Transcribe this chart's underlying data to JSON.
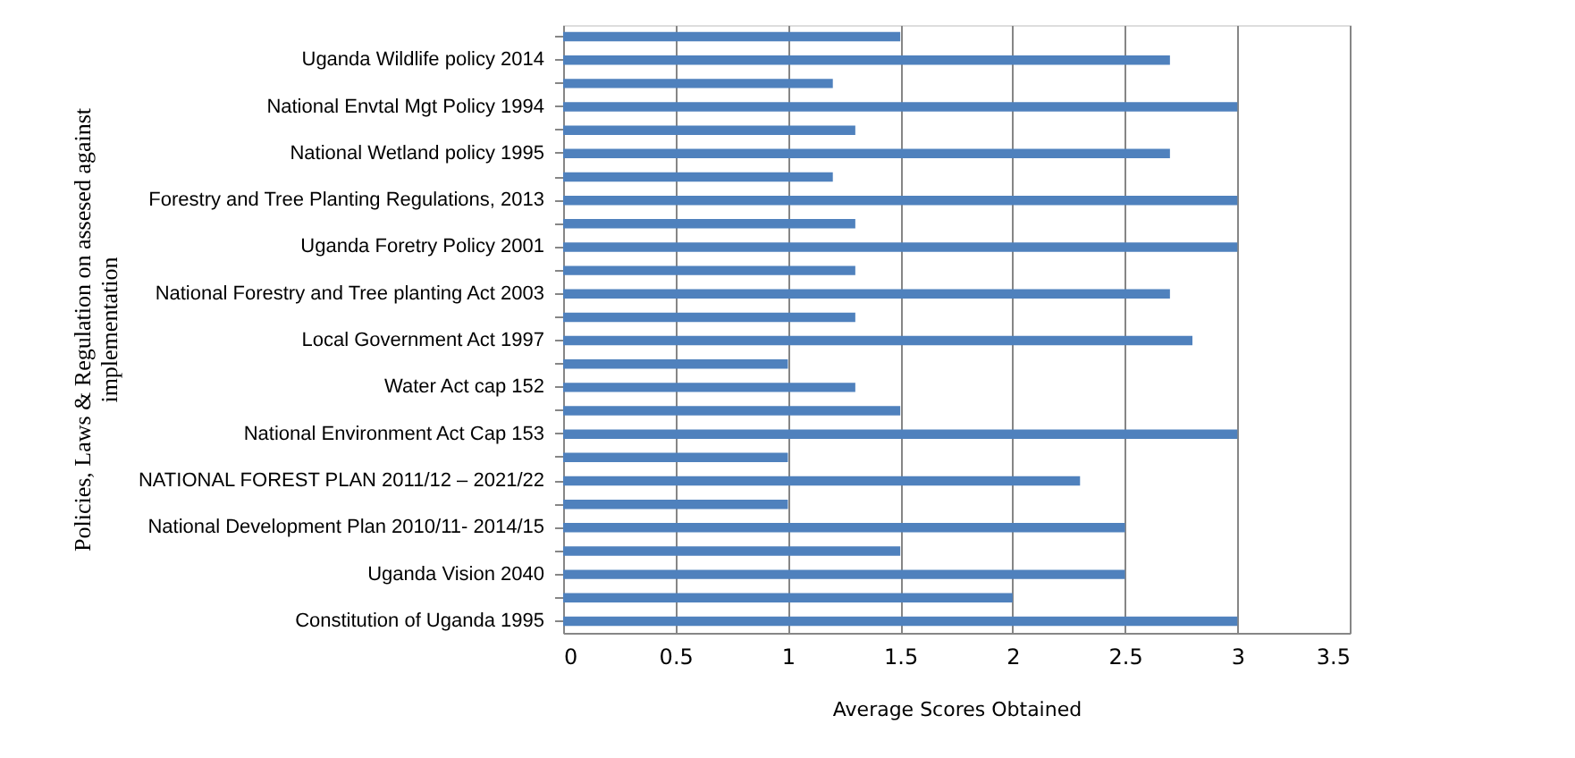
{
  "chart_data": {
    "type": "bar",
    "orientation": "horizontal",
    "categories": [
      null,
      "Uganda Wildlife policy  2014",
      null,
      "National Envtal  Mgt Policy  1994",
      null,
      "National Wetland policy 1995",
      null,
      "Forestry and  Tree Planting  Regulations, 2013",
      null,
      "Uganda Foretry Policy 2001",
      null,
      "National Forestry and Tree planting Act 2003",
      null,
      "Local Government Act 1997",
      null,
      "Water  Act cap 152",
      null,
      "National Environment Act Cap 153",
      null,
      "NATIONAL FOREST PLAN  2011/12 – 2021/22",
      null,
      "National Development Plan 2010/11- 2014/15",
      null,
      "Uganda Vision 2040",
      null,
      "Constitution of Uganda 1995"
    ],
    "series": [
      {
        "color": "#4f81bd",
        "values": [
          1.5,
          2.7,
          1.2,
          3.0,
          1.3,
          2.7,
          1.2,
          3.0,
          1.3,
          3.0,
          1.3,
          2.7,
          1.3,
          2.8,
          1.0,
          1.3,
          1.5,
          3.0,
          1.0,
          2.3,
          1.0,
          2.5,
          1.5,
          2.5,
          2.0,
          3.0
        ]
      }
    ],
    "xlim": [
      0,
      3.5
    ],
    "xticks": [
      0,
      0.5,
      1,
      1.5,
      2,
      2.5,
      3,
      3.5
    ],
    "xlabel": "Average Scores Obtained",
    "ylabel": "Policies, Laws & Regulation on assesed against\nimplementation",
    "grid": "x",
    "legend": false
  }
}
